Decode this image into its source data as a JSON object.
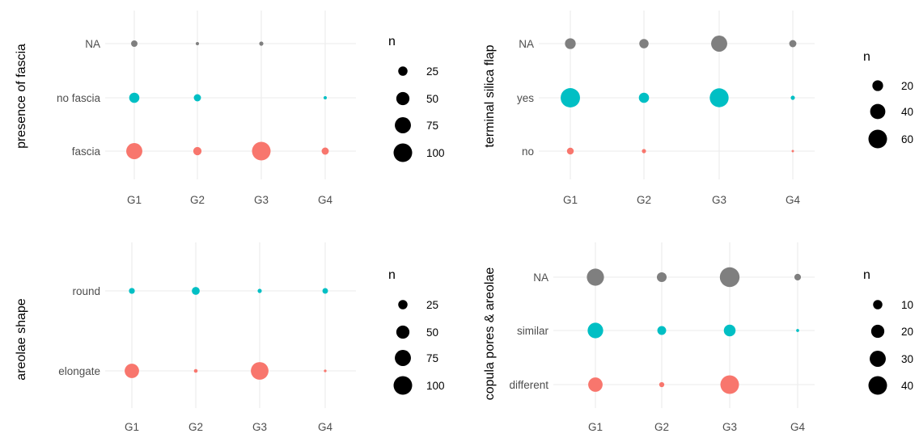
{
  "chart_data": [
    {
      "type": "scatter",
      "ylabel": "presence of fascia",
      "x_categories": [
        "G1",
        "G2",
        "G3",
        "G4"
      ],
      "y_categories": [
        "fascia",
        "no fascia",
        "NA"
      ],
      "series": [
        {
          "category": "fascia",
          "color": "#F8766D",
          "points": [
            {
              "x": "G1",
              "n": 75
            },
            {
              "x": "G2",
              "n": 20
            },
            {
              "x": "G3",
              "n": 100
            },
            {
              "x": "G4",
              "n": 15
            }
          ]
        },
        {
          "category": "no fascia",
          "color": "#00BFC4",
          "points": [
            {
              "x": "G1",
              "n": 30
            },
            {
              "x": "G2",
              "n": 15
            },
            {
              "x": "G4",
              "n": 3
            }
          ]
        },
        {
          "category": "NA",
          "color": "#7F7F7F",
          "points": [
            {
              "x": "G1",
              "n": 12
            },
            {
              "x": "G2",
              "n": 3
            },
            {
              "x": "G3",
              "n": 5
            }
          ]
        }
      ],
      "size_legend": {
        "title": "n",
        "values": [
          25,
          50,
          75,
          100
        ],
        "labels": [
          "25",
          "50",
          "75",
          "100"
        ]
      }
    },
    {
      "type": "scatter",
      "ylabel": "terminal silica flap",
      "x_categories": [
        "G1",
        "G2",
        "G3",
        "G4"
      ],
      "y_categories": [
        "no",
        "yes",
        "NA"
      ],
      "series": [
        {
          "category": "no",
          "color": "#F8766D",
          "points": [
            {
              "x": "G1",
              "n": 8
            },
            {
              "x": "G2",
              "n": 3
            },
            {
              "x": "G4",
              "n": 1
            }
          ]
        },
        {
          "category": "yes",
          "color": "#00BFC4",
          "points": [
            {
              "x": "G1",
              "n": 65
            },
            {
              "x": "G2",
              "n": 18
            },
            {
              "x": "G3",
              "n": 62
            },
            {
              "x": "G4",
              "n": 3
            }
          ]
        },
        {
          "category": "NA",
          "color": "#7F7F7F",
          "points": [
            {
              "x": "G1",
              "n": 20
            },
            {
              "x": "G2",
              "n": 15
            },
            {
              "x": "G3",
              "n": 45
            },
            {
              "x": "G4",
              "n": 9
            }
          ]
        }
      ],
      "size_legend": {
        "title": "n",
        "values": [
          20,
          40,
          60
        ],
        "labels": [
          "20",
          "40",
          "60"
        ]
      }
    },
    {
      "type": "scatter",
      "ylabel": "areolae shape",
      "x_categories": [
        "G1",
        "G2",
        "G3",
        "G4"
      ],
      "y_categories": [
        "elongate",
        "round"
      ],
      "series": [
        {
          "category": "elongate",
          "color": "#F8766D",
          "points": [
            {
              "x": "G1",
              "n": 60
            },
            {
              "x": "G2",
              "n": 4
            },
            {
              "x": "G3",
              "n": 90
            },
            {
              "x": "G4",
              "n": 2
            }
          ]
        },
        {
          "category": "round",
          "color": "#00BFC4",
          "points": [
            {
              "x": "G1",
              "n": 10
            },
            {
              "x": "G2",
              "n": 18
            },
            {
              "x": "G3",
              "n": 5
            },
            {
              "x": "G4",
              "n": 9
            }
          ]
        }
      ],
      "size_legend": {
        "title": "n",
        "values": [
          25,
          50,
          75,
          100
        ],
        "labels": [
          "25",
          "50",
          "75",
          "100"
        ]
      }
    },
    {
      "type": "scatter",
      "ylabel": "copula pores & areolae",
      "x_categories": [
        "G1",
        "G2",
        "G3",
        "G4"
      ],
      "y_categories": [
        "different",
        "similar",
        "NA"
      ],
      "series": [
        {
          "category": "different",
          "color": "#F8766D",
          "points": [
            {
              "x": "G1",
              "n": 24
            },
            {
              "x": "G2",
              "n": 3
            },
            {
              "x": "G3",
              "n": 40
            }
          ]
        },
        {
          "category": "similar",
          "color": "#00BFC4",
          "points": [
            {
              "x": "G1",
              "n": 28
            },
            {
              "x": "G2",
              "n": 9
            },
            {
              "x": "G3",
              "n": 16
            },
            {
              "x": "G4",
              "n": 1
            }
          ]
        },
        {
          "category": "NA",
          "color": "#7F7F7F",
          "points": [
            {
              "x": "G1",
              "n": 34
            },
            {
              "x": "G2",
              "n": 11
            },
            {
              "x": "G3",
              "n": 45
            },
            {
              "x": "G4",
              "n": 5
            }
          ]
        }
      ],
      "size_legend": {
        "title": "n",
        "values": [
          10,
          20,
          30,
          40
        ],
        "labels": [
          "10",
          "20",
          "30",
          "40"
        ]
      }
    }
  ]
}
